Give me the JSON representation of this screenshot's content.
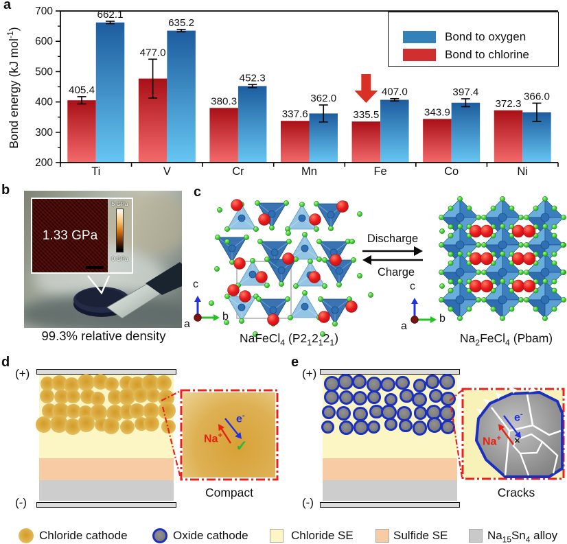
{
  "chart_data": {
    "type": "bar",
    "categories": [
      "Ti",
      "V",
      "Cr",
      "Mn",
      "Fe",
      "Co",
      "Ni"
    ],
    "series": [
      {
        "name": "Bond to chlorine",
        "color": "#d02f2f",
        "gradient": [
          "#a81016",
          "#f4696b"
        ],
        "values": [
          405.4,
          477.0,
          380.3,
          337.6,
          335.5,
          343.9,
          372.3
        ],
        "errors": [
          12,
          64,
          0,
          0,
          0,
          0,
          0
        ]
      },
      {
        "name": "Bond to oxygen",
        "color": "#3381b8",
        "gradient": [
          "#1d5c9e",
          "#66c6f2"
        ],
        "values": [
          662.1,
          635.2,
          452.3,
          362.0,
          407.0,
          397.4,
          366.0
        ],
        "errors": [
          4,
          4,
          5,
          28,
          4,
          13,
          30
        ]
      }
    ],
    "ylabel_html": "Bond energy (kJ mol<sup>-1</sup>)",
    "ylim": [
      200,
      700
    ],
    "yticks": [
      200,
      300,
      400,
      500,
      600,
      700
    ],
    "minor_tick_step": 50,
    "legend_position": "top-right",
    "annotation": {
      "type": "down-arrow",
      "category": "Fe",
      "series": "Bond to chlorine",
      "color": "#d93025"
    }
  },
  "panels": {
    "a": {
      "label": "a"
    },
    "b": {
      "label": "b",
      "inset_value": "1.33 GPa",
      "scale_top": "5 GPa",
      "scale_bottom": "0 GPa",
      "caption": "99.3% relative density"
    },
    "c": {
      "label": "c",
      "left_caption_html": "NaFeCl<sub>4</sub> (P2<sub>1</sub>2<sub>1</sub>2<sub>1</sub>)",
      "right_caption_html": "Na<sub>2</sub>FeCl<sub>4</sub> (Pbam)",
      "discharge_label": "Discharge",
      "charge_label": "Charge",
      "axis_a": "a",
      "axis_b": "b",
      "axis_c": "c"
    },
    "d": {
      "label": "d",
      "plus": "(+)",
      "minus": "(-)",
      "na_html": "Na<sup>+</sup>",
      "e_html": "e<sup>-</sup>",
      "check": "✓",
      "inset_caption": "Compact"
    },
    "e": {
      "label": "e",
      "plus": "(+)",
      "minus": "(-)",
      "na_html": "Na<sup>+</sup>",
      "e_html": "e<sup>-</sup>",
      "cross": "×",
      "inset_caption": "Cracks"
    }
  },
  "bottom_legend": [
    {
      "key": "chloride-cathode",
      "label_html": "Chloride cathode"
    },
    {
      "key": "oxide-cathode",
      "label_html": "Oxide cathode"
    },
    {
      "key": "chloride-se",
      "label_html": "Chloride SE"
    },
    {
      "key": "sulfide-se",
      "label_html": "Sulfide SE"
    },
    {
      "key": "na15sn4-alloy",
      "label_html": "Na<sub>15</sub>Sn<sub>4</sub> alloy"
    }
  ],
  "colors": {
    "na_sphere": "#e01820",
    "cl_sphere": "#3fd43f",
    "fe_tetrahedron_dark": "#2a68ac",
    "fe_tetrahedron_light": "#8cc1e2",
    "octahedron_blue": "#3b7fc0",
    "chloride_cathode": "#d9a33a",
    "oxide_cathode": "#7d7d7d",
    "oxide_ring": "#1b2fc0",
    "chloride_se": "#fbf6c3",
    "sulfide_se": "#f7cba3",
    "alloy": "#cdcdcd",
    "inset_border": "#e8221a",
    "na_arrow": "#e82010",
    "e_arrow": "#2230dd",
    "check_green": "#2ab53c"
  }
}
